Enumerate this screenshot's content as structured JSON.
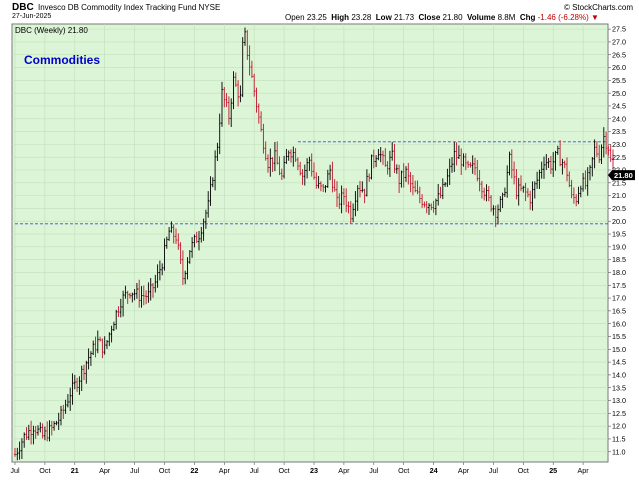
{
  "header": {
    "symbol": "DBC",
    "name": "Invesco DB Commodity Index Tracking Fund",
    "exchange": "NYSE",
    "date": "27-Jun-2025",
    "brand": "© StockCharts.com",
    "open_label": "Open",
    "open": "23.25",
    "high_label": "High",
    "high": "23.28",
    "low_label": "Low",
    "low": "21.73",
    "close_label": "Close",
    "close": "21.80",
    "volume_label": "Volume",
    "volume": "8.8M",
    "chg_label": "Chg",
    "chg": "-1.46 (-6.28%)",
    "chg_arrow": "▼"
  },
  "chart_data": {
    "type": "ohlc",
    "series_label": "DBC (Weekly) 21.80",
    "annotation": "Commodities",
    "last_value": "21.80",
    "ylim": [
      10.6,
      27.7
    ],
    "y_ticks": [
      11.0,
      11.5,
      12.0,
      12.5,
      13.0,
      13.5,
      14.0,
      14.5,
      15.0,
      15.5,
      16.0,
      16.5,
      17.0,
      17.5,
      18.0,
      18.5,
      19.0,
      19.5,
      20.0,
      20.5,
      21.0,
      21.5,
      22.0,
      22.5,
      23.0,
      23.5,
      24.0,
      24.5,
      25.0,
      25.5,
      26.0,
      26.5,
      27.0,
      27.5
    ],
    "x_tick_labels": [
      "Jul",
      "Oct",
      "21",
      "Apr",
      "Jul",
      "Oct",
      "22",
      "Apr",
      "Jul",
      "Oct",
      "23",
      "Apr",
      "Jul",
      "Oct",
      "24",
      "Apr",
      "Jul",
      "Oct",
      "25",
      "Apr"
    ],
    "x_tick_bold": [
      false,
      false,
      true,
      false,
      false,
      false,
      true,
      false,
      false,
      false,
      true,
      false,
      false,
      false,
      true,
      false,
      false,
      false,
      true,
      false
    ],
    "x_tick_index": [
      0,
      13,
      26,
      39,
      52,
      65,
      78,
      91,
      104,
      117,
      130,
      143,
      156,
      169,
      182,
      195,
      208,
      221,
      234,
      247
    ],
    "hlines": [
      {
        "value": 23.1,
        "color": "#3355cc",
        "style": "dashed",
        "from_index": 123
      },
      {
        "value": 19.9,
        "color": "#3355cc",
        "style": "dashed",
        "from_index": 0
      }
    ],
    "bar_count": 261,
    "anchors": [
      [
        0,
        10.9
      ],
      [
        4,
        11.6
      ],
      [
        8,
        12.0
      ],
      [
        12,
        11.6
      ],
      [
        16,
        11.9
      ],
      [
        20,
        12.4
      ],
      [
        24,
        13.3
      ],
      [
        28,
        13.9
      ],
      [
        32,
        14.7
      ],
      [
        36,
        15.3
      ],
      [
        39,
        15.0
      ],
      [
        42,
        15.9
      ],
      [
        46,
        16.9
      ],
      [
        50,
        17.3
      ],
      [
        54,
        17.1
      ],
      [
        58,
        17.1
      ],
      [
        61,
        17.6
      ],
      [
        64,
        18.4
      ],
      [
        67,
        19.6
      ],
      [
        70,
        19.4
      ],
      [
        73,
        17.8
      ],
      [
        76,
        18.9
      ],
      [
        80,
        19.5
      ],
      [
        84,
        20.6
      ],
      [
        88,
        23.0
      ],
      [
        90,
        25.0
      ],
      [
        93,
        24.1
      ],
      [
        95,
        25.5
      ],
      [
        98,
        24.8
      ],
      [
        99,
        26.8
      ],
      [
        100,
        27.2
      ],
      [
        101,
        26.6
      ],
      [
        104,
        25.1
      ],
      [
        107,
        23.5
      ],
      [
        110,
        22.3
      ],
      [
        113,
        22.5
      ],
      [
        116,
        21.7
      ],
      [
        119,
        22.8
      ],
      [
        122,
        22.6
      ],
      [
        125,
        21.8
      ],
      [
        128,
        22.4
      ],
      [
        131,
        21.4
      ],
      [
        134,
        21.2
      ],
      [
        137,
        22.0
      ],
      [
        140,
        20.7
      ],
      [
        143,
        21.0
      ],
      [
        146,
        20.3
      ],
      [
        149,
        21.4
      ],
      [
        152,
        21.2
      ],
      [
        155,
        22.3
      ],
      [
        158,
        22.8
      ],
      [
        161,
        22.1
      ],
      [
        164,
        22.5
      ],
      [
        167,
        21.6
      ],
      [
        170,
        21.9
      ],
      [
        173,
        21.2
      ],
      [
        176,
        20.9
      ],
      [
        179,
        20.7
      ],
      [
        182,
        20.7
      ],
      [
        185,
        21.0
      ],
      [
        188,
        21.7
      ],
      [
        191,
        22.6
      ],
      [
        194,
        22.4
      ],
      [
        197,
        22.0
      ],
      [
        200,
        22.1
      ],
      [
        203,
        21.4
      ],
      [
        206,
        20.8
      ],
      [
        209,
        20.4
      ],
      [
        212,
        20.8
      ],
      [
        215,
        22.4
      ],
      [
        218,
        21.2
      ],
      [
        221,
        21.2
      ],
      [
        224,
        20.9
      ],
      [
        227,
        21.6
      ],
      [
        230,
        22.4
      ],
      [
        233,
        22.2
      ],
      [
        236,
        22.6
      ],
      [
        238,
        22.3
      ],
      [
        240,
        21.9
      ],
      [
        242,
        20.9
      ],
      [
        244,
        20.9
      ],
      [
        246,
        21.5
      ],
      [
        248,
        21.4
      ],
      [
        250,
        21.9
      ],
      [
        252,
        22.8
      ],
      [
        254,
        22.6
      ],
      [
        256,
        23.3
      ],
      [
        258,
        22.9
      ],
      [
        260,
        21.8
      ]
    ],
    "up_color": "#000000",
    "down_color": "#c0142b",
    "colors": {
      "plot_bg": "#dcf5d6",
      "border": "#777777",
      "grid": "#bfe0b8",
      "label_color": "#0000cc",
      "last_bg": "#000000",
      "last_fg": "#ffffff"
    }
  }
}
